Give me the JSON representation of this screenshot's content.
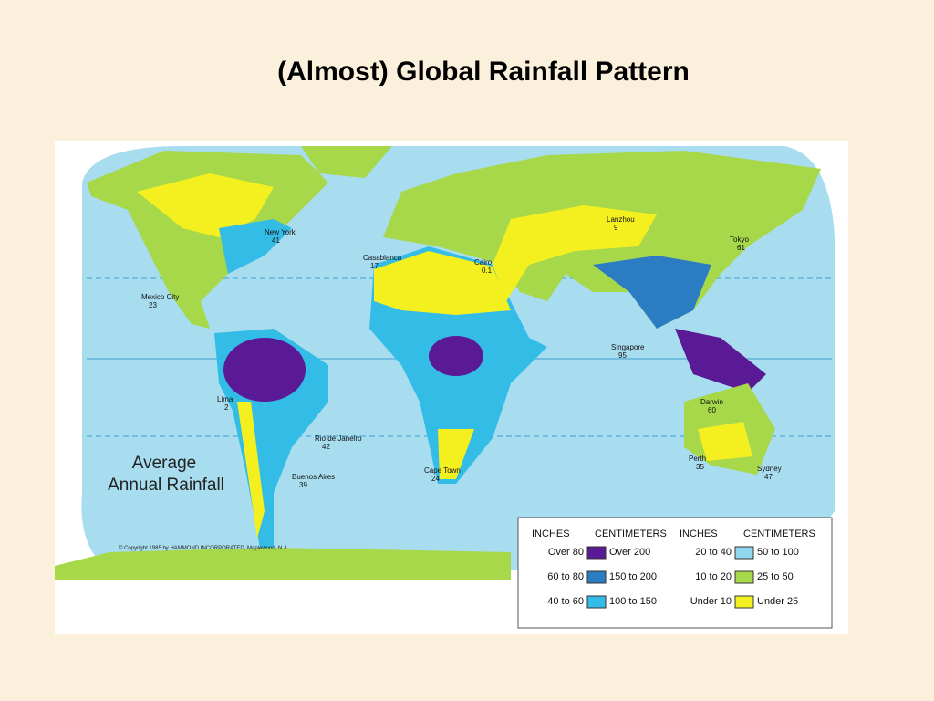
{
  "title": "(Almost) Global Rainfall Pattern",
  "map": {
    "heading": [
      "Average",
      "Annual Rainfall"
    ],
    "copyright": "© Copyright 1985 by HAMMOND INCORPORATED, Maplewood, N.J.",
    "cities": [
      {
        "name": "New York",
        "value": "41"
      },
      {
        "name": "Mexico City",
        "value": "23"
      },
      {
        "name": "Lima",
        "value": "2"
      },
      {
        "name": "Rio de Janeiro",
        "value": "42"
      },
      {
        "name": "Buenos Aires",
        "value": "39"
      },
      {
        "name": "Casablanca",
        "value": "17"
      },
      {
        "name": "Cairo",
        "value": "0.1"
      },
      {
        "name": "Cape Town",
        "value": "24"
      },
      {
        "name": "Singapore",
        "value": "95"
      },
      {
        "name": "Darwin",
        "value": "60"
      },
      {
        "name": "Perth",
        "value": "35"
      },
      {
        "name": "Sydney",
        "value": "47"
      },
      {
        "name": "Tokyo",
        "value": "61"
      },
      {
        "name": "Lanzhou",
        "value": "9"
      }
    ],
    "legend": {
      "headers": [
        "INCHES",
        "CENTIMETERS",
        "INCHES",
        "CENTIMETERS"
      ],
      "rows": [
        {
          "inches": "Over 80",
          "cm": "Over 200",
          "color": "#5a1a96"
        },
        {
          "inches": "60 to 80",
          "cm": "150 to 200",
          "color": "#2c7cc4"
        },
        {
          "inches": "40 to 60",
          "cm": "100 to 150",
          "color": "#33bde6"
        },
        {
          "inches": "20 to 40",
          "cm": "50 to 100",
          "color": "#8fd8ef"
        },
        {
          "inches": "10 to 20",
          "cm": "25 to 50",
          "color": "#a6d84a"
        },
        {
          "inches": "Under 10",
          "cm": "Under 25",
          "color": "#f4f020"
        }
      ]
    }
  }
}
